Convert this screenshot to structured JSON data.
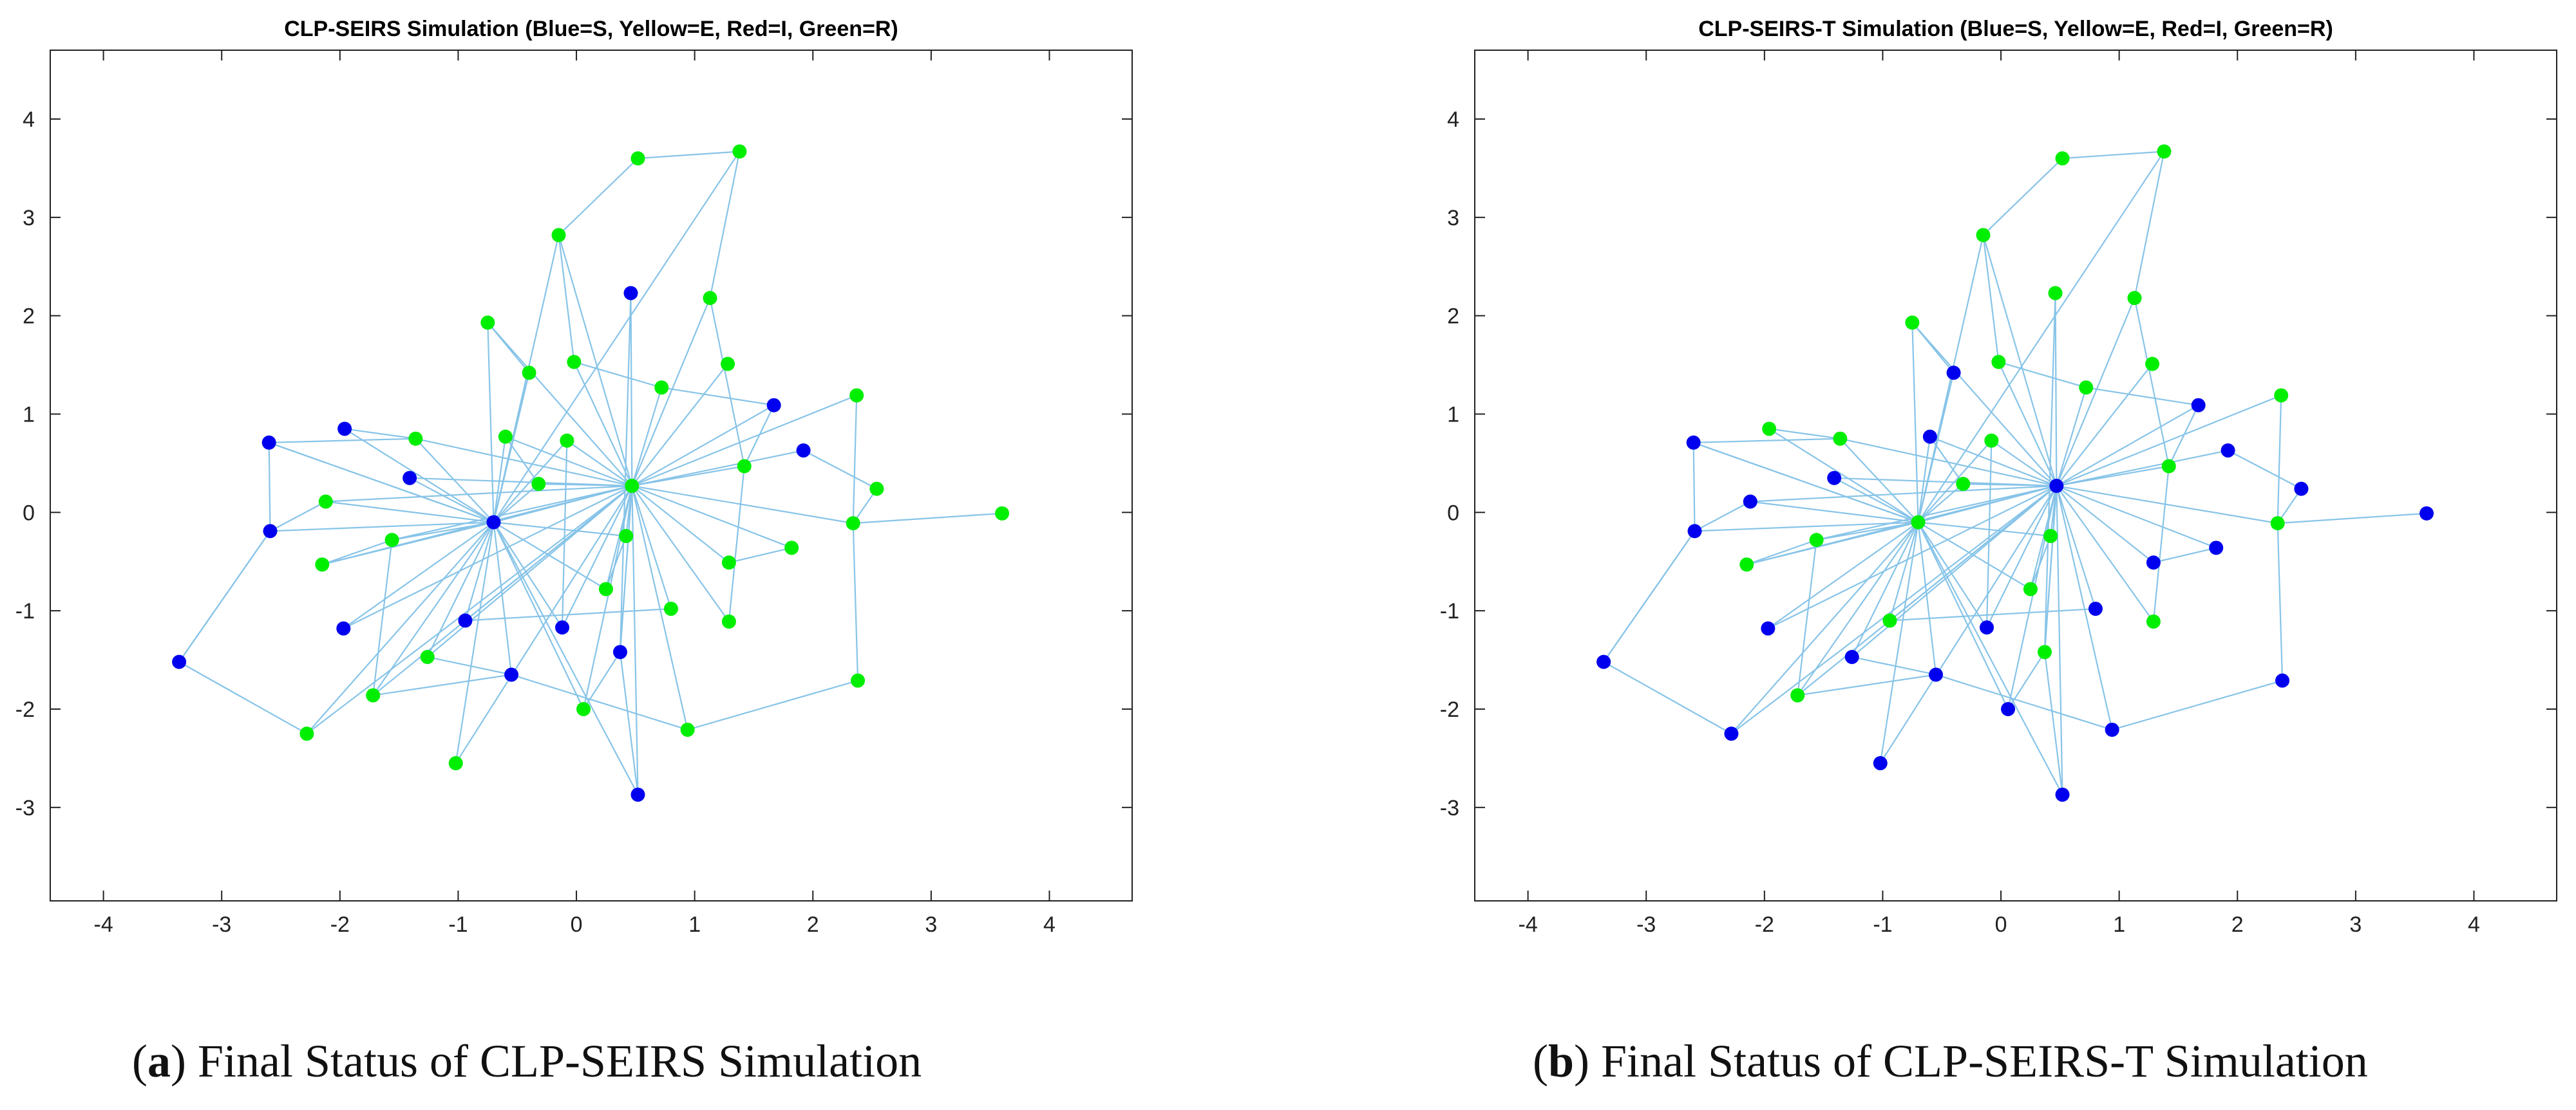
{
  "colors": {
    "S": "#0000ee",
    "E": "#ffee00",
    "I": "#ee0000",
    "R": "#00ee00",
    "edge": "#87c4e8",
    "axis": "#222222"
  },
  "captions": [
    {
      "open": "(",
      "letter": "a",
      "close": ")",
      "text": " Final Status of CLP-SEIRS Simulation"
    },
    {
      "open": "(",
      "letter": "b",
      "close": ")",
      "text": " Final Status of CLP-SEIRS-T Simulation"
    }
  ],
  "chart_data": [
    {
      "type": "scatter",
      "title": "CLP-SEIRS Simulation (Blue=S, Yellow=E, Red=I, Green=R)",
      "xlim": [
        -4.45,
        4.7
      ],
      "ylim": [
        -3.95,
        4.7
      ],
      "xticks": [
        -4,
        -3,
        -2,
        -1,
        0,
        1,
        2,
        3,
        4
      ],
      "yticks": [
        -3,
        -2,
        -1,
        0,
        1,
        2,
        3,
        4
      ],
      "tick_labels_x": [
        "-4",
        "-3",
        "-2",
        "-1",
        "0",
        "1",
        "2",
        "3",
        "4"
      ],
      "tick_labels_y": [
        "-3",
        "-2",
        "-1",
        "0",
        "1",
        "2",
        "3",
        "4"
      ],
      "grid": false,
      "nodes": [
        {
          "x": 0.47,
          "y": 0.27,
          "state": "R"
        },
        {
          "x": -0.7,
          "y": -0.1,
          "state": "S"
        },
        {
          "x": 0.52,
          "y": 3.6,
          "state": "R"
        },
        {
          "x": 1.38,
          "y": 3.67,
          "state": "R"
        },
        {
          "x": -0.15,
          "y": 2.82,
          "state": "R"
        },
        {
          "x": 0.46,
          "y": 2.23,
          "state": "S"
        },
        {
          "x": 1.13,
          "y": 2.18,
          "state": "R"
        },
        {
          "x": -0.75,
          "y": 1.93,
          "state": "R"
        },
        {
          "x": -0.02,
          "y": 1.53,
          "state": "R"
        },
        {
          "x": 1.28,
          "y": 1.51,
          "state": "R"
        },
        {
          "x": -0.4,
          "y": 1.42,
          "state": "R"
        },
        {
          "x": 0.72,
          "y": 1.27,
          "state": "R"
        },
        {
          "x": 2.37,
          "y": 1.19,
          "state": "R"
        },
        {
          "x": 1.67,
          "y": 1.09,
          "state": "S"
        },
        {
          "x": -1.96,
          "y": 0.85,
          "state": "S"
        },
        {
          "x": -1.36,
          "y": 0.75,
          "state": "R"
        },
        {
          "x": -2.6,
          "y": 0.71,
          "state": "S"
        },
        {
          "x": -0.6,
          "y": 0.77,
          "state": "R"
        },
        {
          "x": -0.08,
          "y": 0.73,
          "state": "R"
        },
        {
          "x": 1.92,
          "y": 0.63,
          "state": "S"
        },
        {
          "x": 1.42,
          "y": 0.47,
          "state": "R"
        },
        {
          "x": -1.41,
          "y": 0.35,
          "state": "S"
        },
        {
          "x": -0.32,
          "y": 0.29,
          "state": "R"
        },
        {
          "x": 2.54,
          "y": 0.24,
          "state": "R"
        },
        {
          "x": -2.12,
          "y": 0.11,
          "state": "R"
        },
        {
          "x": 3.6,
          "y": -0.01,
          "state": "R"
        },
        {
          "x": -2.59,
          "y": -0.19,
          "state": "S"
        },
        {
          "x": 2.34,
          "y": -0.11,
          "state": "R"
        },
        {
          "x": 0.42,
          "y": -0.24,
          "state": "R"
        },
        {
          "x": -1.56,
          "y": -0.28,
          "state": "R"
        },
        {
          "x": 1.82,
          "y": -0.36,
          "state": "R"
        },
        {
          "x": -2.15,
          "y": -0.53,
          "state": "R"
        },
        {
          "x": 1.29,
          "y": -0.51,
          "state": "R"
        },
        {
          "x": 0.25,
          "y": -0.78,
          "state": "R"
        },
        {
          "x": 0.8,
          "y": -0.98,
          "state": "R"
        },
        {
          "x": -1.97,
          "y": -1.18,
          "state": "S"
        },
        {
          "x": -0.94,
          "y": -1.1,
          "state": "S"
        },
        {
          "x": -0.12,
          "y": -1.17,
          "state": "S"
        },
        {
          "x": 1.29,
          "y": -1.11,
          "state": "R"
        },
        {
          "x": -1.26,
          "y": -1.47,
          "state": "R"
        },
        {
          "x": 0.37,
          "y": -1.42,
          "state": "S"
        },
        {
          "x": -3.36,
          "y": -1.52,
          "state": "S"
        },
        {
          "x": -0.55,
          "y": -1.65,
          "state": "S"
        },
        {
          "x": 2.38,
          "y": -1.71,
          "state": "R"
        },
        {
          "x": -1.72,
          "y": -1.86,
          "state": "R"
        },
        {
          "x": 0.06,
          "y": -2.0,
          "state": "R"
        },
        {
          "x": 0.94,
          "y": -2.21,
          "state": "R"
        },
        {
          "x": -2.28,
          "y": -2.25,
          "state": "R"
        },
        {
          "x": -1.02,
          "y": -2.55,
          "state": "R"
        },
        {
          "x": 0.52,
          "y": -2.87,
          "state": "S"
        }
      ],
      "edges": [
        [
          2,
          3
        ],
        [
          2,
          4
        ],
        [
          3,
          6
        ],
        [
          4,
          0
        ],
        [
          4,
          8
        ],
        [
          5,
          0
        ],
        [
          6,
          0
        ],
        [
          7,
          0
        ],
        [
          7,
          10
        ],
        [
          8,
          0
        ],
        [
          8,
          11
        ],
        [
          9,
          0
        ],
        [
          11,
          0
        ],
        [
          11,
          13
        ],
        [
          12,
          0
        ],
        [
          12,
          27
        ],
        [
          13,
          0
        ],
        [
          14,
          15
        ],
        [
          15,
          0
        ],
        [
          15,
          16
        ],
        [
          16,
          1
        ],
        [
          17,
          0
        ],
        [
          18,
          0
        ],
        [
          19,
          0
        ],
        [
          20,
          0
        ],
        [
          20,
          13
        ],
        [
          21,
          0
        ],
        [
          22,
          0
        ],
        [
          23,
          27
        ],
        [
          24,
          0
        ],
        [
          25,
          27
        ],
        [
          26,
          41
        ],
        [
          27,
          0
        ],
        [
          28,
          0
        ],
        [
          29,
          0
        ],
        [
          30,
          0
        ],
        [
          31,
          0
        ],
        [
          32,
          0
        ],
        [
          33,
          0
        ],
        [
          34,
          0
        ],
        [
          35,
          0
        ],
        [
          36,
          0
        ],
        [
          37,
          0
        ],
        [
          38,
          0
        ],
        [
          39,
          0
        ],
        [
          40,
          0
        ],
        [
          41,
          47
        ],
        [
          43,
          27
        ],
        [
          44,
          0
        ],
        [
          45,
          0
        ],
        [
          46,
          0
        ],
        [
          47,
          0
        ],
        [
          48,
          0
        ],
        [
          49,
          0
        ]
      ],
      "edges_to_hub2": [
        0,
        3,
        7,
        10,
        14,
        15,
        17,
        18,
        21,
        22,
        24,
        26,
        28,
        29,
        31,
        33,
        35,
        36,
        37,
        39,
        42,
        44,
        45,
        47,
        48,
        49,
        4,
        16
      ],
      "extra_edges": [
        [
          24,
          26
        ],
        [
          29,
          31
        ],
        [
          29,
          44
        ],
        [
          32,
          30
        ],
        [
          34,
          36
        ],
        [
          38,
          20
        ],
        [
          40,
          45
        ],
        [
          43,
          46
        ],
        [
          46,
          42
        ],
        [
          42,
          39
        ],
        [
          42,
          44
        ],
        [
          49,
          40
        ],
        [
          23,
          19
        ],
        [
          22,
          17
        ],
        [
          18,
          37
        ],
        [
          33,
          28
        ],
        [
          40,
          0
        ],
        [
          26,
          16
        ],
        [
          41,
          26
        ],
        [
          5,
          40
        ],
        [
          6,
          20
        ]
      ]
    },
    {
      "type": "scatter",
      "title": "CLP-SEIRS-T Simulation (Blue=S, Yellow=E, Red=I, Green=R)",
      "xlim": [
        -4.45,
        4.7
      ],
      "ylim": [
        -3.95,
        4.7
      ],
      "xticks": [
        -4,
        -3,
        -2,
        -1,
        0,
        1,
        2,
        3,
        4
      ],
      "yticks": [
        -3,
        -2,
        -1,
        0,
        1,
        2,
        3,
        4
      ],
      "tick_labels_x": [
        "-4",
        "-3",
        "-2",
        "-1",
        "0",
        "1",
        "2",
        "3",
        "4"
      ],
      "tick_labels_y": [
        "-3",
        "-2",
        "-1",
        "0",
        "1",
        "2",
        "3",
        "4"
      ],
      "grid": false,
      "nodes": [
        {
          "x": 0.47,
          "y": 0.27,
          "state": "S"
        },
        {
          "x": -0.7,
          "y": -0.1,
          "state": "R"
        },
        {
          "x": 0.52,
          "y": 3.6,
          "state": "R"
        },
        {
          "x": 1.38,
          "y": 3.67,
          "state": "R"
        },
        {
          "x": -0.15,
          "y": 2.82,
          "state": "R"
        },
        {
          "x": 0.46,
          "y": 2.23,
          "state": "R"
        },
        {
          "x": 1.13,
          "y": 2.18,
          "state": "R"
        },
        {
          "x": -0.75,
          "y": 1.93,
          "state": "R"
        },
        {
          "x": -0.02,
          "y": 1.53,
          "state": "R"
        },
        {
          "x": 1.28,
          "y": 1.51,
          "state": "R"
        },
        {
          "x": -0.4,
          "y": 1.42,
          "state": "S"
        },
        {
          "x": 0.72,
          "y": 1.27,
          "state": "R"
        },
        {
          "x": 2.37,
          "y": 1.19,
          "state": "R"
        },
        {
          "x": 1.67,
          "y": 1.09,
          "state": "S"
        },
        {
          "x": -1.96,
          "y": 0.85,
          "state": "R"
        },
        {
          "x": -1.36,
          "y": 0.75,
          "state": "R"
        },
        {
          "x": -2.6,
          "y": 0.71,
          "state": "S"
        },
        {
          "x": -0.6,
          "y": 0.77,
          "state": "S"
        },
        {
          "x": -0.08,
          "y": 0.73,
          "state": "R"
        },
        {
          "x": 1.92,
          "y": 0.63,
          "state": "S"
        },
        {
          "x": 1.42,
          "y": 0.47,
          "state": "R"
        },
        {
          "x": -1.41,
          "y": 0.35,
          "state": "S"
        },
        {
          "x": -0.32,
          "y": 0.29,
          "state": "R"
        },
        {
          "x": 2.54,
          "y": 0.24,
          "state": "S"
        },
        {
          "x": -2.12,
          "y": 0.11,
          "state": "S"
        },
        {
          "x": 3.6,
          "y": -0.01,
          "state": "S"
        },
        {
          "x": -2.59,
          "y": -0.19,
          "state": "S"
        },
        {
          "x": 2.34,
          "y": -0.11,
          "state": "R"
        },
        {
          "x": 0.42,
          "y": -0.24,
          "state": "R"
        },
        {
          "x": -1.56,
          "y": -0.28,
          "state": "R"
        },
        {
          "x": 1.82,
          "y": -0.36,
          "state": "S"
        },
        {
          "x": -2.15,
          "y": -0.53,
          "state": "R"
        },
        {
          "x": 1.29,
          "y": -0.51,
          "state": "S"
        },
        {
          "x": 0.25,
          "y": -0.78,
          "state": "R"
        },
        {
          "x": 0.8,
          "y": -0.98,
          "state": "S"
        },
        {
          "x": -1.97,
          "y": -1.18,
          "state": "S"
        },
        {
          "x": -0.94,
          "y": -1.1,
          "state": "R"
        },
        {
          "x": -0.12,
          "y": -1.17,
          "state": "S"
        },
        {
          "x": 1.29,
          "y": -1.11,
          "state": "R"
        },
        {
          "x": -1.26,
          "y": -1.47,
          "state": "S"
        },
        {
          "x": 0.37,
          "y": -1.42,
          "state": "R"
        },
        {
          "x": -3.36,
          "y": -1.52,
          "state": "S"
        },
        {
          "x": -0.55,
          "y": -1.65,
          "state": "S"
        },
        {
          "x": 2.38,
          "y": -1.71,
          "state": "S"
        },
        {
          "x": -1.72,
          "y": -1.86,
          "state": "R"
        },
        {
          "x": 0.06,
          "y": -2.0,
          "state": "S"
        },
        {
          "x": 0.94,
          "y": -2.21,
          "state": "S"
        },
        {
          "x": -2.28,
          "y": -2.25,
          "state": "S"
        },
        {
          "x": -1.02,
          "y": -2.55,
          "state": "S"
        },
        {
          "x": 0.52,
          "y": -2.87,
          "state": "S"
        }
      ]
    }
  ]
}
